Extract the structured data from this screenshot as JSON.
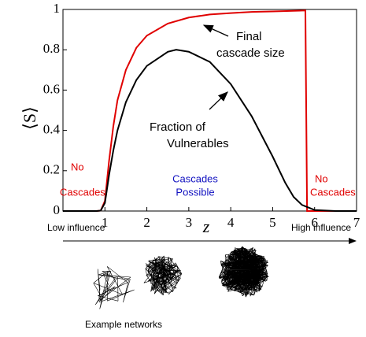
{
  "chart_data": {
    "type": "line",
    "ylabel": "⟨S⟩",
    "xlabel": "z",
    "xlim": [
      0,
      7
    ],
    "xticks": [
      1,
      2,
      3,
      4,
      5,
      6,
      7
    ],
    "ylim": [
      0,
      1
    ],
    "yticks": [
      0,
      0.2,
      0.4,
      0.6,
      0.8,
      1
    ],
    "series": [
      {
        "color": "#e00000",
        "x": [
          0,
          0.8,
          0.9,
          1,
          1.1,
          1.2,
          1.3,
          1.5,
          1.75,
          2,
          2.5,
          3,
          3.5,
          4,
          4.5,
          5,
          5.5,
          5.78,
          5.82,
          6,
          7
        ],
        "values": [
          0,
          0,
          0.002,
          0.05,
          0.25,
          0.42,
          0.55,
          0.7,
          0.81,
          0.87,
          0.93,
          0.96,
          0.975,
          0.982,
          0.988,
          0.99,
          0.993,
          0.995,
          0,
          0,
          0
        ]
      },
      {
        "color": "#000000",
        "x": [
          0,
          0.8,
          0.9,
          1,
          1.1,
          1.2,
          1.3,
          1.5,
          1.75,
          2,
          2.5,
          2.7,
          3,
          3.5,
          4,
          4.5,
          5,
          5.3,
          5.5,
          5.7,
          6,
          6.5,
          7
        ],
        "values": [
          0,
          0,
          0.002,
          0.04,
          0.18,
          0.3,
          0.4,
          0.54,
          0.65,
          0.72,
          0.79,
          0.8,
          0.79,
          0.74,
          0.63,
          0.47,
          0.27,
          0.14,
          0.07,
          0.03,
          0.005,
          0,
          0
        ]
      }
    ],
    "annotations": [
      {
        "lines": [
          "Final",
          "cascade size"
        ],
        "color": "#000000"
      },
      {
        "lines": [
          "Fraction of",
          "Vulnerables"
        ],
        "color": "#000000"
      },
      {
        "lines": [
          "No",
          "Cascades"
        ],
        "color": "#e00000"
      },
      {
        "lines": [
          "Cascades",
          "Possible"
        ],
        "color": "#1010c0"
      },
      {
        "lines": [
          "No",
          "Cascades"
        ],
        "color": "#e00000"
      }
    ],
    "low_label": "Low influence",
    "high_label": "High influence",
    "networks_label": "Example networks"
  }
}
